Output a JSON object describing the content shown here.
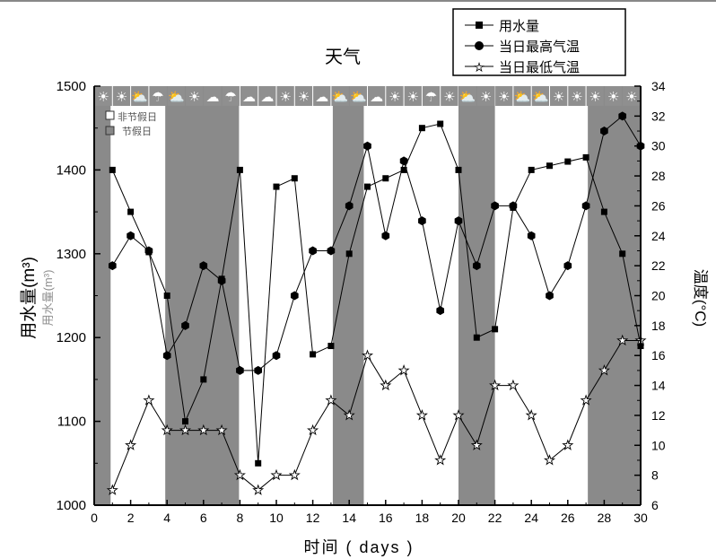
{
  "chart_data": {
    "type": "line",
    "title": "天气",
    "xlabel": "时间 ( days )",
    "ylabel": "用水量(m³)",
    "ylabel_ghost": "用水量(m³)",
    "y2label": "温度(°C)",
    "xlim": [
      0,
      30
    ],
    "ylim": [
      1000,
      1500
    ],
    "y2lim": [
      6,
      34
    ],
    "xticks": [
      0,
      2,
      4,
      6,
      8,
      10,
      12,
      14,
      16,
      18,
      20,
      22,
      24,
      26,
      28,
      30
    ],
    "yticks": [
      1000,
      1100,
      1200,
      1300,
      1400,
      1500
    ],
    "y2ticks": [
      6,
      8,
      10,
      12,
      14,
      16,
      18,
      20,
      22,
      24,
      26,
      28,
      30,
      32,
      34
    ],
    "x": [
      1,
      2,
      3,
      4,
      5,
      6,
      7,
      8,
      9,
      10,
      11,
      12,
      13,
      14,
      15,
      16,
      17,
      18,
      19,
      20,
      21,
      22,
      23,
      24,
      25,
      26,
      27,
      28,
      29,
      30
    ],
    "series": [
      {
        "name": "用水量",
        "axis": "left",
        "marker": "square",
        "values": [
          1400,
          1350,
          1302,
          1250,
          1100,
          1150,
          1270,
          1400,
          1050,
          1380,
          1390,
          1180,
          1190,
          1300,
          1380,
          1390,
          1400,
          1450,
          1455,
          1400,
          1200,
          1210,
          1355,
          1400,
          1405,
          1410,
          1415,
          1350,
          1300,
          1190
        ]
      },
      {
        "name": "当日最高气温",
        "axis": "right",
        "marker": "hexagon",
        "values": [
          22,
          24,
          23,
          16,
          18,
          22,
          21,
          15,
          15,
          16,
          20,
          23,
          23,
          26,
          30,
          24,
          29,
          25,
          19,
          25,
          22,
          26,
          26,
          24,
          20,
          22,
          26,
          31,
          32,
          30
        ]
      },
      {
        "name": "当日最低气温",
        "axis": "right",
        "marker": "star",
        "values": [
          7,
          10,
          13,
          11,
          11,
          11,
          11,
          8,
          7,
          8,
          8,
          11,
          13,
          12,
          16,
          14,
          15,
          12,
          9,
          12,
          10,
          14,
          14,
          12,
          9,
          10,
          13,
          15,
          17,
          17
        ]
      }
    ],
    "holiday_ranges": [
      [
        0,
        0.9
      ],
      [
        3.9,
        7.95
      ],
      [
        13.1,
        14.8
      ],
      [
        20,
        22
      ],
      [
        27.1,
        30
      ]
    ],
    "shade_legend": [
      "非节假日",
      "节假日"
    ],
    "weather_icons": [
      "sun",
      "sun",
      "sun-cloud",
      "rain",
      "sun-cloud",
      "sun",
      "cloud",
      "rain",
      "cloud",
      "cloud",
      "sun",
      "sun",
      "cloud",
      "sun-cloud",
      "sun-cloud",
      "cloud",
      "sun",
      "sun",
      "rain",
      "sun",
      "sun-cloud",
      "sun",
      "sun",
      "sun-cloud",
      "sun-cloud",
      "sun",
      "sun",
      "sun",
      "sun",
      "sun"
    ],
    "legend_position": "top-right",
    "grid": false
  },
  "colors": {
    "shade": "#8a8a8a",
    "icon_bg": "#8f8f8f",
    "line": "#000000"
  }
}
